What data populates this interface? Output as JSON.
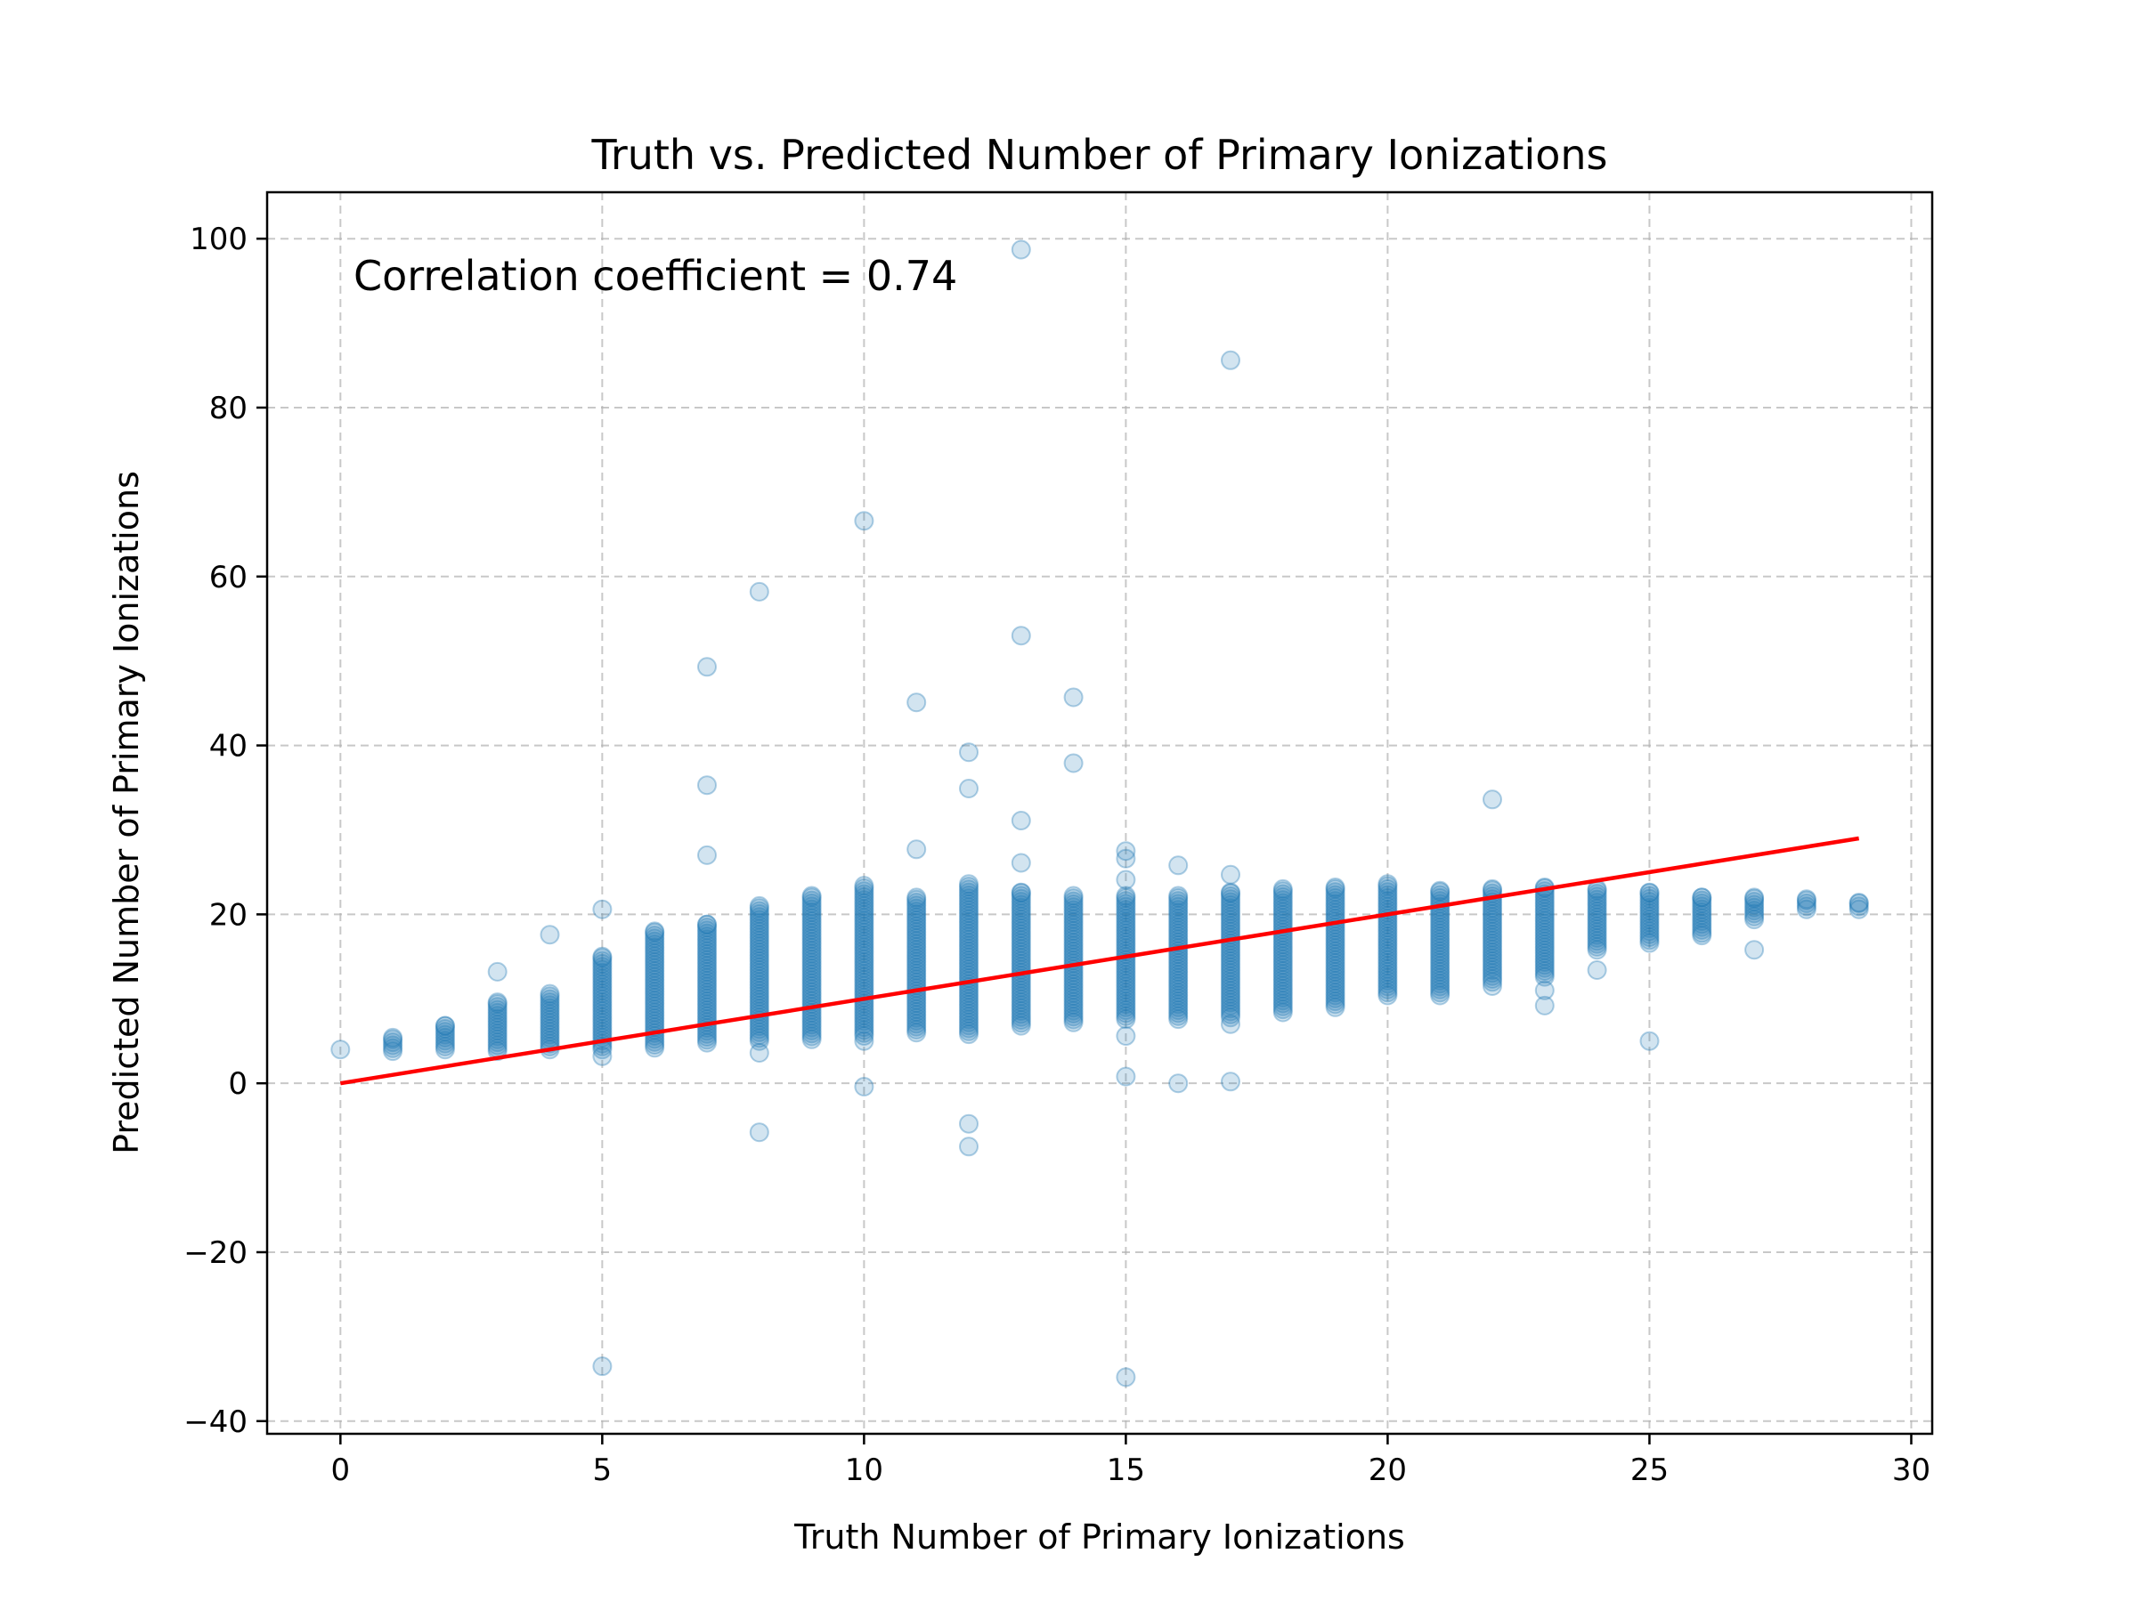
{
  "chart_data": {
    "type": "scatter",
    "title": "Truth vs. Predicted Number of Primary Ionizations",
    "xlabel": "Truth Number of Primary Ionizations",
    "ylabel": "Predicted Number of Primary Ionizations",
    "xlim": [
      -1.4,
      30.4
    ],
    "ylim": [
      -41.5,
      105.5
    ],
    "xticks": [
      0,
      5,
      10,
      15,
      20,
      25,
      30
    ],
    "yticks": [
      -40,
      -20,
      0,
      20,
      40,
      60,
      80,
      100
    ],
    "grid": true,
    "annotation": "Correlation coefficient = 0.74",
    "colors": {
      "points": "#1f77b4",
      "fit_line": "#ff0000",
      "grid": "#b0b0b0"
    },
    "series": [
      {
        "kind": "point_ranges",
        "note_fields": [
          "x",
          "y_min",
          "y_max"
        ],
        "ranges": [
          [
            1,
            3.8,
            5.4
          ],
          [
            2,
            4.0,
            6.8
          ],
          [
            3,
            3.8,
            9.6
          ],
          [
            4,
            4.0,
            10.6
          ],
          [
            5,
            4.0,
            15.0
          ],
          [
            6,
            4.2,
            18.0
          ],
          [
            7,
            4.8,
            18.8
          ],
          [
            8,
            5.0,
            21.0
          ],
          [
            9,
            5.2,
            22.2
          ],
          [
            10,
            5.6,
            23.4
          ],
          [
            11,
            6.0,
            22.0
          ],
          [
            12,
            5.8,
            23.6
          ],
          [
            13,
            6.8,
            22.6
          ],
          [
            14,
            7.2,
            22.2
          ],
          [
            15,
            7.6,
            22.2
          ],
          [
            16,
            7.6,
            22.2
          ],
          [
            17,
            7.8,
            22.6
          ],
          [
            18,
            8.4,
            23.0
          ],
          [
            19,
            9.0,
            23.2
          ],
          [
            20,
            10.4,
            23.6
          ],
          [
            21,
            10.4,
            22.8
          ],
          [
            22,
            12.0,
            23.0
          ],
          [
            23,
            12.6,
            23.2
          ],
          [
            24,
            15.8,
            23.0
          ],
          [
            25,
            16.6,
            22.6
          ],
          [
            26,
            17.8,
            22.0
          ],
          [
            27,
            19.4,
            22.0
          ],
          [
            28,
            20.6,
            21.8
          ],
          [
            29,
            20.6,
            21.4
          ]
        ],
        "outliers": [
          [
            0,
            4.0
          ],
          [
            3,
            13.2
          ],
          [
            4,
            17.6
          ],
          [
            5,
            20.6
          ],
          [
            5,
            3.2
          ],
          [
            5,
            -33.5
          ],
          [
            7,
            49.3
          ],
          [
            7,
            35.3
          ],
          [
            7,
            27.0
          ],
          [
            8,
            58.2
          ],
          [
            8,
            -5.8
          ],
          [
            8,
            3.6
          ],
          [
            10,
            66.6
          ],
          [
            10,
            -0.4
          ],
          [
            10,
            5.0
          ],
          [
            11,
            45.1
          ],
          [
            11,
            27.7
          ],
          [
            12,
            39.2
          ],
          [
            12,
            34.9
          ],
          [
            12,
            -4.8
          ],
          [
            12,
            -7.5
          ],
          [
            13,
            98.7
          ],
          [
            13,
            53.0
          ],
          [
            13,
            31.1
          ],
          [
            13,
            26.1
          ],
          [
            14,
            45.7
          ],
          [
            14,
            37.9
          ],
          [
            15,
            27.5
          ],
          [
            15,
            26.6
          ],
          [
            15,
            24.1
          ],
          [
            15,
            5.6
          ],
          [
            15,
            0.8
          ],
          [
            15,
            -34.8
          ],
          [
            16,
            25.8
          ],
          [
            16,
            0.0
          ],
          [
            17,
            85.6
          ],
          [
            17,
            24.7
          ],
          [
            17,
            7.0
          ],
          [
            17,
            0.2
          ],
          [
            22,
            33.6
          ],
          [
            22,
            11.5
          ],
          [
            23,
            11.0
          ],
          [
            23,
            9.2
          ],
          [
            24,
            13.4
          ],
          [
            25,
            5.0
          ],
          [
            26,
            17.5
          ],
          [
            27,
            15.8
          ]
        ]
      },
      {
        "kind": "line",
        "x": [
          0,
          29
        ],
        "y": [
          0,
          29
        ]
      }
    ]
  }
}
